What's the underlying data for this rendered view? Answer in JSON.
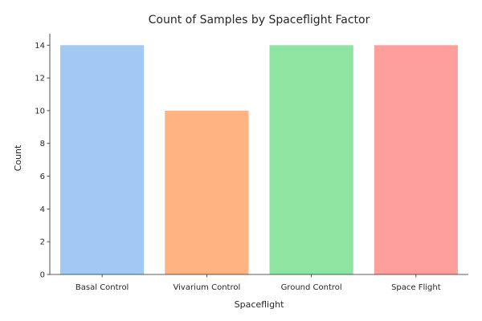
{
  "chart_data": {
    "type": "bar",
    "title": "Count of Samples by Spaceflight Factor",
    "xlabel": "Spaceflight",
    "ylabel": "Count",
    "categories": [
      "Basal Control",
      "Vivarium Control",
      "Ground Control",
      "Space Flight"
    ],
    "values": [
      14,
      10,
      14,
      14
    ],
    "colors": [
      "#a1c9f4",
      "#ffb482",
      "#8de5a1",
      "#ff9f9b"
    ],
    "ylim": [
      0,
      14.7
    ],
    "yticks": [
      0,
      2,
      4,
      6,
      8,
      10,
      12,
      14
    ],
    "grid": false,
    "legend": "none"
  }
}
